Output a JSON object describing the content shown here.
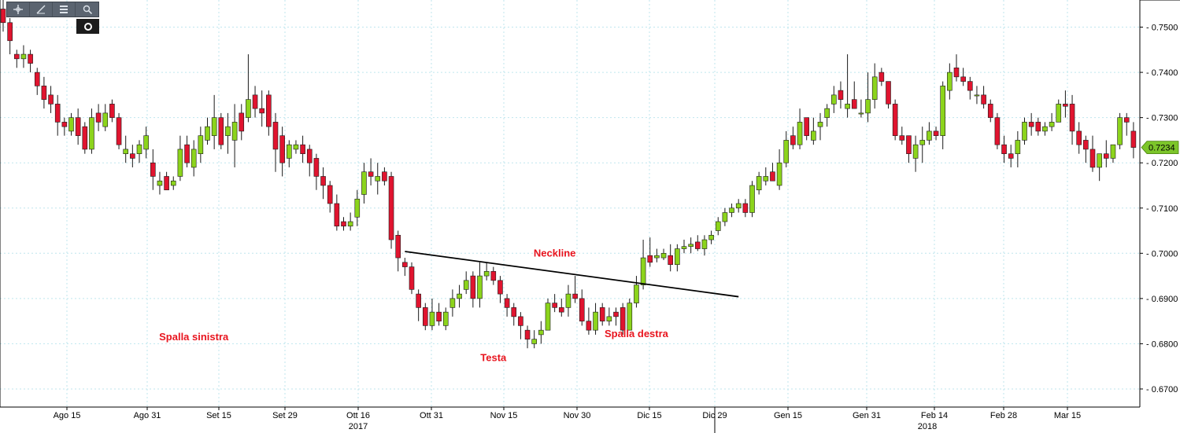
{
  "toolbar": {
    "icons": [
      "crosshair-icon",
      "draw-line-icon",
      "table-icon",
      "zoom-icon"
    ],
    "settings_icon": "settings-icon"
  },
  "colors": {
    "up": "#8cd41c",
    "down": "#e0142f",
    "grid": "#bfe6ee",
    "last_price_bg": "#7cc52a",
    "annotation": "#e8141e",
    "neckline": "#000000"
  },
  "chart_data": {
    "type": "candlestick",
    "title": "",
    "ylim": [
      0.666,
      0.756
    ],
    "y_ticks": [
      "0.6700",
      "0.6800",
      "0.6900",
      "0.7000",
      "0.7100",
      "0.7200",
      "0.7300",
      "0.7400",
      "0.7500"
    ],
    "x_ticks": [
      "Ago 15",
      "Ago 31",
      "Set 15",
      "Set 29",
      "Ott 16",
      "Ott 31",
      "Nov 15",
      "Nov 30",
      "Dic 15",
      "Dic 29",
      "Gen 15",
      "Gen 31",
      "Feb 14",
      "Feb 28",
      "Mar 15"
    ],
    "year_labels": [
      "2017",
      "2018"
    ],
    "last_price": "0.7234",
    "annotations": [
      {
        "text": "Spalla sinistra",
        "anchor_candle": 28,
        "ref_price": 0.6808
      },
      {
        "text": "Testa",
        "anchor_candle": 72,
        "ref_price": 0.6762
      },
      {
        "text": "Spalla destra",
        "anchor_candle": 93,
        "ref_price": 0.6815
      },
      {
        "text": "Neckline",
        "anchor_candle": 81,
        "ref_price": 0.6993
      }
    ],
    "neckline": {
      "start": [
        59,
        0.7004
      ],
      "end": [
        108,
        0.6904
      ]
    },
    "closes": [
      0.751,
      0.747,
      0.743,
      0.744,
      0.742,
      0.737,
      0.734,
      0.733,
      0.729,
      0.728,
      0.73,
      0.726,
      0.723,
      0.73,
      0.729,
      0.731,
      0.73,
      0.724,
      0.723,
      0.721,
      0.724,
      0.726,
      0.717,
      0.716,
      0.714,
      0.716,
      0.723,
      0.72,
      0.723,
      0.726,
      0.728,
      0.73,
      0.724,
      0.728,
      0.729,
      0.727,
      0.734,
      0.732,
      0.731,
      0.728,
      0.723,
      0.72,
      0.724,
      0.724,
      0.722,
      0.72,
      0.717,
      0.715,
      0.711,
      0.706,
      0.706,
      0.707,
      0.712,
      0.718,
      0.717,
      0.717,
      0.716,
      0.703,
      0.699,
      0.697,
      0.692,
      0.688,
      0.684,
      0.687,
      0.685,
      0.687,
      0.69,
      0.691,
      0.694,
      0.69,
      0.695,
      0.696,
      0.694,
      0.691,
      0.688,
      0.686,
      0.684,
      0.681,
      0.681,
      0.683,
      0.689,
      0.688,
      0.687,
      0.691,
      0.69,
      0.685,
      0.683,
      0.687,
      0.685,
      0.686,
      0.686,
      0.683,
      0.689,
      0.693,
      0.699,
      0.698,
      0.6995,
      0.7,
      0.6975,
      0.701,
      0.7015,
      0.702,
      0.701,
      0.703,
      0.704,
      0.707,
      0.709,
      0.71,
      0.711,
      0.709,
      0.715,
      0.717,
      0.717,
      0.716,
      0.72,
      0.725,
      0.724,
      0.729,
      0.726,
      0.727,
      0.729,
      0.732,
      0.735,
      0.734,
      0.733,
      0.732,
      0.731,
      0.734,
      0.739,
      0.738,
      0.733,
      0.726,
      0.725,
      0.722,
      0.724,
      0.725,
      0.727,
      0.726,
      0.737,
      0.74,
      0.739,
      0.738,
      0.736,
      0.735,
      0.733,
      0.73,
      0.724,
      0.722,
      0.721,
      0.725,
      0.729,
      0.728,
      0.727,
      0.728,
      0.729,
      0.733,
      0.7325,
      0.727,
      0.724,
      0.723,
      0.719,
      0.722,
      0.721,
      0.724,
      0.73,
      0.729,
      0.7234
    ],
    "opens": [
      0.754,
      0.751,
      0.744,
      0.743,
      0.744,
      0.74,
      0.737,
      0.735,
      0.733,
      0.729,
      0.727,
      0.73,
      0.728,
      0.723,
      0.731,
      0.728,
      0.733,
      0.73,
      0.722,
      0.722,
      0.722,
      0.723,
      0.72,
      0.715,
      0.717,
      0.715,
      0.717,
      0.724,
      0.719,
      0.722,
      0.725,
      0.726,
      0.73,
      0.726,
      0.725,
      0.731,
      0.73,
      0.735,
      0.732,
      0.735,
      0.729,
      0.726,
      0.721,
      0.723,
      0.724,
      0.723,
      0.721,
      0.717,
      0.715,
      0.711,
      0.707,
      0.706,
      0.708,
      0.713,
      0.718,
      0.716,
      0.718,
      0.717,
      0.704,
      0.698,
      0.697,
      0.691,
      0.688,
      0.684,
      0.687,
      0.684,
      0.688,
      0.69,
      0.692,
      0.695,
      0.69,
      0.695,
      0.696,
      0.694,
      0.69,
      0.688,
      0.686,
      0.683,
      0.68,
      0.682,
      0.683,
      0.689,
      0.688,
      0.688,
      0.691,
      0.69,
      0.685,
      0.683,
      0.688,
      0.685,
      0.687,
      0.688,
      0.683,
      0.689,
      0.693,
      0.6995,
      0.699,
      0.699,
      0.6995,
      0.6975,
      0.701,
      0.7015,
      0.7025,
      0.701,
      0.703,
      0.705,
      0.707,
      0.709,
      0.71,
      0.711,
      0.709,
      0.714,
      0.716,
      0.718,
      0.715,
      0.72,
      0.726,
      0.724,
      0.73,
      0.725,
      0.728,
      0.73,
      0.733,
      0.736,
      0.732,
      0.734,
      0.731,
      0.731,
      0.734,
      0.74,
      0.738,
      0.733,
      0.726,
      0.726,
      0.721,
      0.724,
      0.725,
      0.727,
      0.726,
      0.736,
      0.741,
      0.739,
      0.738,
      0.735,
      0.735,
      0.733,
      0.73,
      0.724,
      0.722,
      0.722,
      0.725,
      0.729,
      0.729,
      0.727,
      0.728,
      0.729,
      0.733,
      0.733,
      0.727,
      0.725,
      0.723,
      0.719,
      0.722,
      0.721,
      0.724,
      0.73,
      0.727
    ],
    "highs": [
      0.756,
      0.752,
      0.745,
      0.746,
      0.745,
      0.741,
      0.739,
      0.737,
      0.735,
      0.73,
      0.731,
      0.732,
      0.729,
      0.732,
      0.733,
      0.733,
      0.734,
      0.731,
      0.726,
      0.724,
      0.725,
      0.728,
      0.723,
      0.718,
      0.718,
      0.717,
      0.726,
      0.726,
      0.725,
      0.728,
      0.73,
      0.735,
      0.731,
      0.731,
      0.733,
      0.733,
      0.744,
      0.737,
      0.736,
      0.736,
      0.731,
      0.728,
      0.725,
      0.725,
      0.726,
      0.724,
      0.722,
      0.719,
      0.716,
      0.713,
      0.708,
      0.709,
      0.714,
      0.72,
      0.721,
      0.72,
      0.719,
      0.718,
      0.705,
      0.699,
      0.698,
      0.692,
      0.689,
      0.69,
      0.689,
      0.688,
      0.692,
      0.693,
      0.696,
      0.696,
      0.698,
      0.698,
      0.697,
      0.695,
      0.691,
      0.689,
      0.687,
      0.684,
      0.683,
      0.685,
      0.69,
      0.691,
      0.69,
      0.693,
      0.695,
      0.692,
      0.688,
      0.689,
      0.689,
      0.688,
      0.688,
      0.689,
      0.69,
      0.695,
      0.703,
      0.7035,
      0.701,
      0.701,
      0.702,
      0.702,
      0.703,
      0.7035,
      0.704,
      0.704,
      0.705,
      0.708,
      0.71,
      0.711,
      0.712,
      0.712,
      0.716,
      0.718,
      0.719,
      0.72,
      0.723,
      0.727,
      0.728,
      0.732,
      0.73,
      0.73,
      0.731,
      0.733,
      0.737,
      0.738,
      0.744,
      0.738,
      0.734,
      0.74,
      0.742,
      0.741,
      0.736,
      0.734,
      0.728,
      0.726,
      0.726,
      0.728,
      0.729,
      0.728,
      0.738,
      0.742,
      0.744,
      0.741,
      0.739,
      0.737,
      0.737,
      0.734,
      0.731,
      0.726,
      0.724,
      0.727,
      0.73,
      0.731,
      0.73,
      0.729,
      0.731,
      0.734,
      0.736,
      0.735,
      0.729,
      0.726,
      0.726,
      0.722,
      0.725,
      0.724,
      0.731,
      0.731,
      0.729
    ],
    "lows": [
      0.749,
      0.744,
      0.741,
      0.741,
      0.74,
      0.735,
      0.732,
      0.731,
      0.726,
      0.726,
      0.726,
      0.724,
      0.722,
      0.722,
      0.727,
      0.727,
      0.729,
      0.723,
      0.72,
      0.719,
      0.72,
      0.721,
      0.714,
      0.713,
      0.714,
      0.714,
      0.716,
      0.719,
      0.717,
      0.72,
      0.724,
      0.723,
      0.723,
      0.722,
      0.719,
      0.725,
      0.729,
      0.73,
      0.728,
      0.726,
      0.718,
      0.717,
      0.719,
      0.722,
      0.72,
      0.717,
      0.714,
      0.712,
      0.709,
      0.705,
      0.705,
      0.705,
      0.706,
      0.711,
      0.715,
      0.713,
      0.715,
      0.701,
      0.696,
      0.695,
      0.691,
      0.685,
      0.683,
      0.683,
      0.684,
      0.683,
      0.686,
      0.688,
      0.691,
      0.688,
      0.688,
      0.694,
      0.693,
      0.689,
      0.686,
      0.684,
      0.681,
      0.679,
      0.679,
      0.68,
      0.683,
      0.687,
      0.686,
      0.686,
      0.689,
      0.684,
      0.682,
      0.682,
      0.684,
      0.684,
      0.684,
      0.682,
      0.683,
      0.688,
      0.692,
      0.697,
      0.698,
      0.6985,
      0.696,
      0.696,
      0.7,
      0.7,
      0.7005,
      0.6995,
      0.702,
      0.704,
      0.706,
      0.708,
      0.709,
      0.708,
      0.708,
      0.713,
      0.715,
      0.716,
      0.714,
      0.719,
      0.723,
      0.723,
      0.725,
      0.724,
      0.725,
      0.728,
      0.731,
      0.732,
      0.73,
      0.732,
      0.73,
      0.729,
      0.732,
      0.737,
      0.732,
      0.725,
      0.724,
      0.72,
      0.718,
      0.72,
      0.724,
      0.725,
      0.723,
      0.734,
      0.738,
      0.737,
      0.734,
      0.733,
      0.732,
      0.729,
      0.723,
      0.72,
      0.719,
      0.719,
      0.724,
      0.726,
      0.726,
      0.726,
      0.727,
      0.732,
      0.73,
      0.724,
      0.722,
      0.72,
      0.718,
      0.716,
      0.719,
      0.72,
      0.723,
      0.726,
      0.721
    ]
  }
}
